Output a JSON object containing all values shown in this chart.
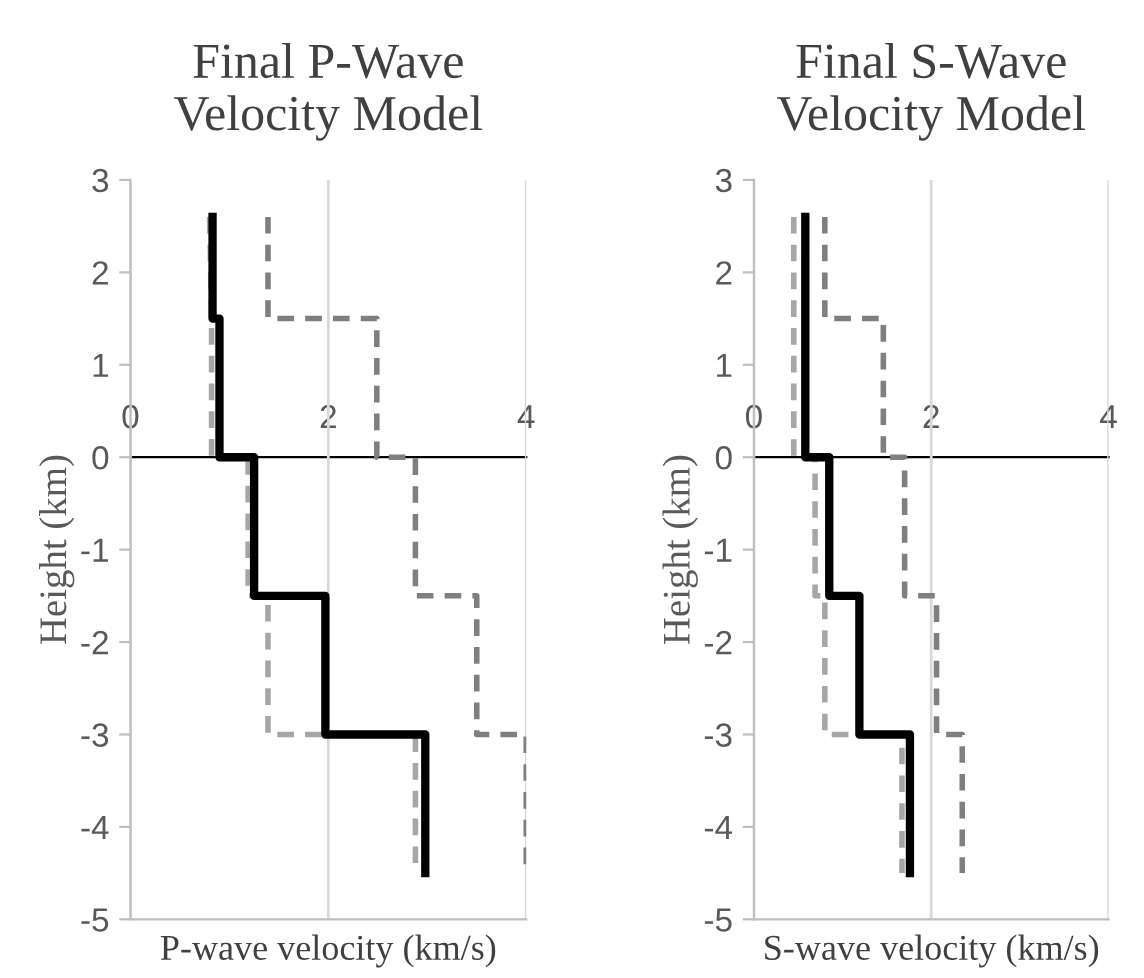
{
  "chart_data": [
    {
      "type": "line",
      "title": "Final P-Wave\nVelocity Model",
      "xlabel": "P-wave velocity (km/s)",
      "ylabel": "Height (km)",
      "xlim": [
        0,
        4
      ],
      "xticks": [
        0,
        2,
        4
      ],
      "ylim": [
        -5,
        3
      ],
      "yticks": [
        -5,
        -4,
        -3,
        -2,
        -1,
        0,
        1,
        2,
        3
      ],
      "grid": "x",
      "marker": "none",
      "series": [
        {
          "color": "#7f7f7f",
          "line_style": "dashed",
          "x": [
            1.39,
            1.39,
            2.49,
            2.49,
            2.88,
            2.88,
            3.5,
            3.5,
            4.0,
            4.0
          ],
          "values": [
            2.6,
            1.5,
            1.5,
            0,
            0,
            -1.5,
            -1.5,
            -3,
            -3,
            -4.5
          ]
        },
        {
          "color": "#a6a6a6",
          "line_style": "dashed",
          "x": [
            0.8,
            0.82,
            0.82,
            1.19,
            1.19,
            1.39,
            1.39,
            2.88,
            2.88
          ],
          "values": [
            2.6,
            1.5,
            0,
            0,
            -1.5,
            -1.5,
            -3,
            -3,
            -4.5
          ]
        },
        {
          "color": "#000000",
          "line_style": "solid",
          "x": [
            0.83,
            0.83,
            0.9,
            0.9,
            1.25,
            1.25,
            1.97,
            1.97,
            2.98,
            2.98
          ],
          "values": [
            2.6,
            1.5,
            1.5,
            0,
            0,
            -1.5,
            -1.5,
            -3,
            -3,
            -4.5
          ]
        }
      ]
    },
    {
      "type": "line",
      "title": "Final S-Wave\nVelocity Model",
      "xlabel": "S-wave velocity (km/s)",
      "ylabel": "Height (km)",
      "xlim": [
        0,
        4
      ],
      "xticks": [
        0,
        2,
        4
      ],
      "ylim": [
        -5,
        3
      ],
      "yticks": [
        -5,
        -4,
        -3,
        -2,
        -1,
        0,
        1,
        2,
        3
      ],
      "grid": "x",
      "marker": "none",
      "series": [
        {
          "color": "#7f7f7f",
          "line_style": "dashed",
          "x": [
            0.8,
            0.8,
            1.46,
            1.46,
            1.7,
            1.7,
            2.06,
            2.06,
            2.35,
            2.35
          ],
          "values": [
            2.6,
            1.5,
            1.5,
            0,
            0,
            -1.5,
            -1.5,
            -3,
            -3,
            -4.5
          ]
        },
        {
          "color": "#a6a6a6",
          "line_style": "dashed",
          "x": [
            0.45,
            0.45,
            0.69,
            0.69,
            0.8,
            0.8,
            1.67,
            1.67
          ],
          "values": [
            2.6,
            0,
            0,
            -1.5,
            -1.5,
            -3,
            -3,
            -4.5
          ]
        },
        {
          "color": "#000000",
          "line_style": "solid",
          "x": [
            0.58,
            0.58,
            0.85,
            0.85,
            1.19,
            1.19,
            1.76,
            1.76
          ],
          "values": [
            2.6,
            0,
            0,
            -1.5,
            -1.5,
            -3,
            -3,
            -4.5
          ]
        }
      ]
    }
  ]
}
